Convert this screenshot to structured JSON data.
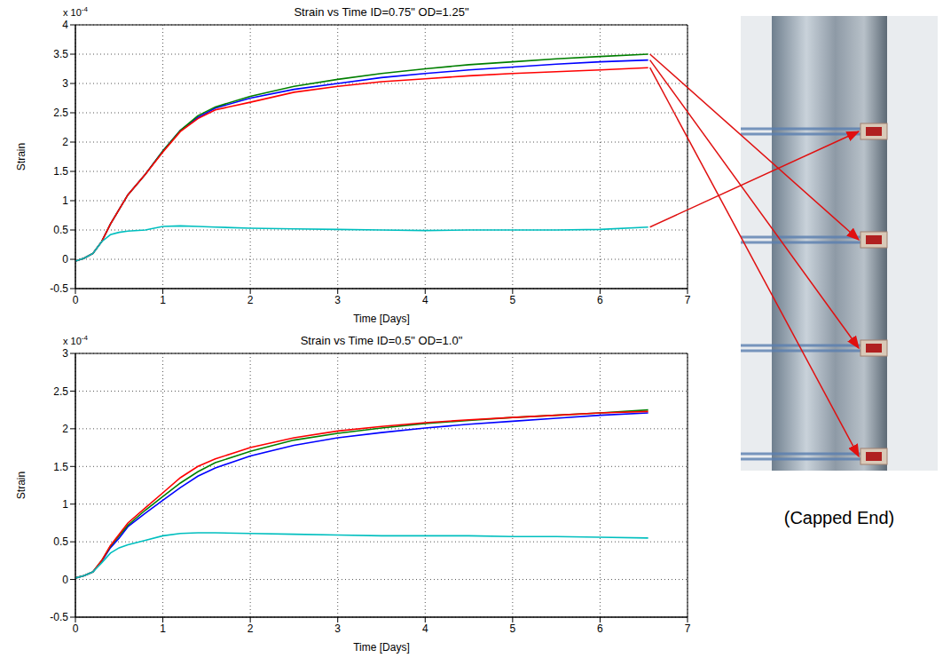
{
  "chart_data": [
    {
      "type": "line",
      "title": "Strain vs Time ID=0.75\" OD=1.25\"",
      "xlabel": "Time [Days]",
      "ylabel": "Strain",
      "y_multiplier": {
        "text": "x 10",
        "superscript": "-4"
      },
      "x": [
        0,
        0.1,
        0.2,
        0.3,
        0.4,
        0.5,
        0.6,
        0.8,
        1.0,
        1.2,
        1.4,
        1.6,
        2,
        2.5,
        3,
        3.5,
        4,
        4.5,
        5,
        5.5,
        6,
        6.55
      ],
      "series": [
        {
          "color": "#0000ff",
          "values": [
            -0.03,
            0.02,
            0.1,
            0.3,
            0.6,
            0.85,
            1.1,
            1.45,
            1.85,
            2.2,
            2.42,
            2.58,
            2.75,
            2.9,
            3.0,
            3.1,
            3.17,
            3.23,
            3.28,
            3.33,
            3.37,
            3.4
          ]
        },
        {
          "color": "#007f00",
          "values": [
            -0.03,
            0.02,
            0.1,
            0.3,
            0.6,
            0.85,
            1.1,
            1.45,
            1.85,
            2.2,
            2.45,
            2.6,
            2.78,
            2.95,
            3.07,
            3.17,
            3.25,
            3.32,
            3.37,
            3.42,
            3.46,
            3.5
          ]
        },
        {
          "color": "#ff0000",
          "values": [
            -0.03,
            0.02,
            0.1,
            0.3,
            0.6,
            0.85,
            1.1,
            1.45,
            1.83,
            2.18,
            2.4,
            2.55,
            2.68,
            2.85,
            2.95,
            3.03,
            3.08,
            3.13,
            3.17,
            3.2,
            3.23,
            3.27
          ]
        },
        {
          "color": "#00bfbf",
          "values": [
            -0.03,
            0.02,
            0.1,
            0.3,
            0.42,
            0.46,
            0.48,
            0.5,
            0.56,
            0.57,
            0.56,
            0.55,
            0.53,
            0.52,
            0.51,
            0.5,
            0.49,
            0.5,
            0.5,
            0.5,
            0.51,
            0.55
          ]
        }
      ],
      "xlim": [
        0,
        7
      ],
      "xticks": [
        0,
        1,
        2,
        3,
        4,
        5,
        6,
        7
      ],
      "ylim": [
        -0.5,
        4
      ],
      "yticks": [
        -0.5,
        0,
        0.5,
        1,
        1.5,
        2,
        2.5,
        3,
        3.5,
        4
      ],
      "grid": true
    },
    {
      "type": "line",
      "title": "Strain vs Time ID=0.5\" OD=1.0\"",
      "xlabel": "Time [Days]",
      "ylabel": "Strain",
      "y_multiplier": {
        "text": "x 10",
        "superscript": "-4"
      },
      "x": [
        0,
        0.1,
        0.2,
        0.3,
        0.4,
        0.5,
        0.6,
        0.8,
        1.0,
        1.2,
        1.4,
        1.6,
        2,
        2.5,
        3,
        3.5,
        4,
        4.5,
        5,
        5.5,
        6,
        6.55
      ],
      "series": [
        {
          "color": "#0000ff",
          "values": [
            0.02,
            0.05,
            0.1,
            0.24,
            0.42,
            0.55,
            0.7,
            0.88,
            1.05,
            1.22,
            1.37,
            1.48,
            1.64,
            1.78,
            1.88,
            1.95,
            2.01,
            2.06,
            2.1,
            2.14,
            2.18,
            2.21
          ]
        },
        {
          "color": "#007f00",
          "values": [
            0.02,
            0.05,
            0.1,
            0.25,
            0.44,
            0.58,
            0.72,
            0.92,
            1.1,
            1.28,
            1.43,
            1.55,
            1.7,
            1.85,
            1.94,
            2.01,
            2.07,
            2.11,
            2.15,
            2.18,
            2.21,
            2.25
          ]
        },
        {
          "color": "#ff0000",
          "values": [
            0.02,
            0.05,
            0.1,
            0.25,
            0.45,
            0.6,
            0.75,
            0.95,
            1.15,
            1.35,
            1.5,
            1.6,
            1.75,
            1.88,
            1.97,
            2.03,
            2.08,
            2.12,
            2.15,
            2.18,
            2.21,
            2.23
          ]
        },
        {
          "color": "#00bfbf",
          "values": [
            0.02,
            0.05,
            0.1,
            0.22,
            0.35,
            0.42,
            0.46,
            0.52,
            0.58,
            0.61,
            0.62,
            0.62,
            0.61,
            0.6,
            0.59,
            0.58,
            0.58,
            0.58,
            0.57,
            0.57,
            0.56,
            0.55
          ]
        }
      ],
      "xlim": [
        0,
        7
      ],
      "xticks": [
        0,
        1,
        2,
        3,
        4,
        5,
        6,
        7
      ],
      "ylim": [
        -0.5,
        3
      ],
      "yticks": [
        -0.5,
        0,
        0.5,
        1,
        1.5,
        2,
        2.5,
        3
      ],
      "grid": true
    }
  ],
  "photo_caption": "(Capped End)"
}
